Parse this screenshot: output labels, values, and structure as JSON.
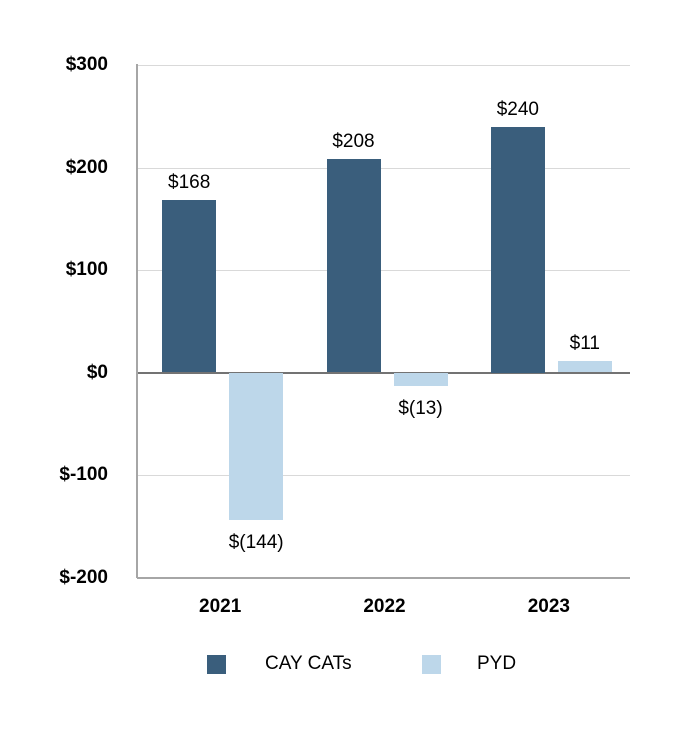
{
  "chart_data": {
    "type": "bar",
    "title": "",
    "xlabel": "",
    "ylabel": "",
    "categories": [
      "2021",
      "2022",
      "2023"
    ],
    "series": [
      {
        "name": "CAY CATs",
        "color": "#3A5E7C",
        "values": [
          168,
          208,
          240
        ],
        "data_labels": [
          "$168",
          "$208",
          "$240"
        ]
      },
      {
        "name": "PYD",
        "color": "#BDD7EA",
        "values": [
          -144,
          -13,
          11
        ],
        "data_labels": [
          "$(144)",
          "$(13)",
          "$11"
        ]
      }
    ],
    "y_axis": {
      "range": [
        -200,
        300
      ],
      "ticks": [
        {
          "value": 300,
          "label": "$300"
        },
        {
          "value": 200,
          "label": "$200"
        },
        {
          "value": 100,
          "label": "$100"
        },
        {
          "value": 0,
          "label": "$0"
        },
        {
          "value": -100,
          "label": "$-100"
        },
        {
          "value": -200,
          "label": "$-200"
        }
      ],
      "grid": true
    },
    "legend": {
      "position": "bottom",
      "entries": [
        "CAY CATs",
        "PYD"
      ]
    }
  },
  "colors": {
    "gridline": "#D9D9D9",
    "zero_line": "#737373",
    "axis_spine": "#A6A6A6",
    "text": "#000000",
    "background": "#FFFFFF"
  }
}
